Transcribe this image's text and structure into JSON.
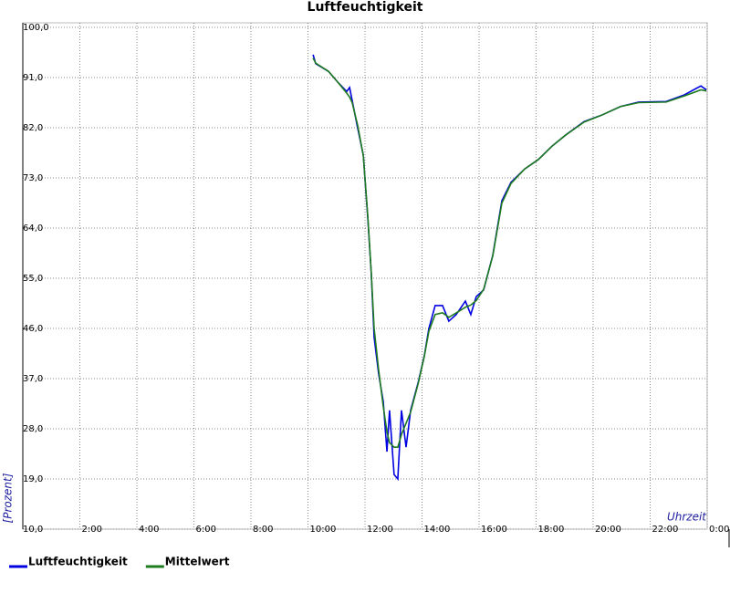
{
  "chart_data": {
    "type": "line",
    "title": "Luftfeuchtigkeit",
    "y_label": "[Prozent]",
    "x_label": "Uhrzeit",
    "x": [
      10.18,
      10.27,
      10.72,
      11.04,
      11.36,
      11.46,
      11.55,
      11.74,
      11.94,
      12.1,
      12.22,
      12.32,
      12.48,
      12.64,
      12.77,
      12.86,
      13.02,
      13.15,
      13.28,
      13.44,
      13.6,
      13.86,
      14.08,
      14.24,
      14.46,
      14.72,
      14.94,
      15.2,
      15.52,
      15.71,
      15.9,
      16.16,
      16.48,
      16.8,
      17.12,
      17.6,
      18.08,
      18.56,
      19.04,
      19.68,
      20.32,
      20.96,
      21.6,
      22.56,
      23.2,
      23.78,
      23.97
    ],
    "series": [
      {
        "name": "Luftfeuchtigkeit",
        "color": "#0000e0",
        "values": [
          95.1,
          93.5,
          92.1,
          90.2,
          88.5,
          89.2,
          86.9,
          82.0,
          77.1,
          65.6,
          55.8,
          44.4,
          37.8,
          32.9,
          23.9,
          31.3,
          19.8,
          19.0,
          31.3,
          24.7,
          31.3,
          36.2,
          41.1,
          46.0,
          50.1,
          50.1,
          47.3,
          48.5,
          50.9,
          48.5,
          51.7,
          52.9,
          59.1,
          68.9,
          72.2,
          74.6,
          76.3,
          78.7,
          80.7,
          83.1,
          84.3,
          85.8,
          86.6,
          86.7,
          87.9,
          89.5,
          88.8
        ]
      },
      {
        "name": "Mittelwert",
        "color": "#1e7b1e",
        "values": [
          94.5,
          93.6,
          92.1,
          90.2,
          88.2,
          87.5,
          86.5,
          82.5,
          77.0,
          66.0,
          56.0,
          46.0,
          38.5,
          32.0,
          27.5,
          25.5,
          24.7,
          24.7,
          27.0,
          29.0,
          31.0,
          36.0,
          41.0,
          45.5,
          48.5,
          48.8,
          48.0,
          48.8,
          49.8,
          50.2,
          51.0,
          53.0,
          59.0,
          68.5,
          72.0,
          74.6,
          76.3,
          78.7,
          80.7,
          83.0,
          84.3,
          85.8,
          86.5,
          86.6,
          87.7,
          88.8,
          88.6
        ]
      }
    ],
    "xlim": [
      0,
      24
    ],
    "xticks": [
      {
        "value": 2,
        "label": "2:00"
      },
      {
        "value": 4,
        "label": "4:00"
      },
      {
        "value": 6,
        "label": "6:00"
      },
      {
        "value": 8,
        "label": "8:00"
      },
      {
        "value": 10,
        "label": "10:00"
      },
      {
        "value": 12,
        "label": "12:00"
      },
      {
        "value": 14,
        "label": "14:00"
      },
      {
        "value": 16,
        "label": "16:00"
      },
      {
        "value": 18,
        "label": "18:00"
      },
      {
        "value": 20,
        "label": "20:00"
      },
      {
        "value": 22,
        "label": "22:00"
      },
      {
        "value": 24,
        "label": "0:00"
      }
    ],
    "ylim": [
      10,
      100
    ],
    "yticks": [
      {
        "value": 10,
        "label": "10,0"
      },
      {
        "value": 19,
        "label": "19,0"
      },
      {
        "value": 28,
        "label": "28,0"
      },
      {
        "value": 37,
        "label": "37,0"
      },
      {
        "value": 46,
        "label": "46,0"
      },
      {
        "value": 55,
        "label": "55,0"
      },
      {
        "value": 64,
        "label": "64,0"
      },
      {
        "value": 73,
        "label": "73,0"
      },
      {
        "value": 82,
        "label": "82,0"
      },
      {
        "value": 91,
        "label": "91,0"
      },
      {
        "value": 100,
        "label": "100,0"
      }
    ],
    "grid": true
  }
}
